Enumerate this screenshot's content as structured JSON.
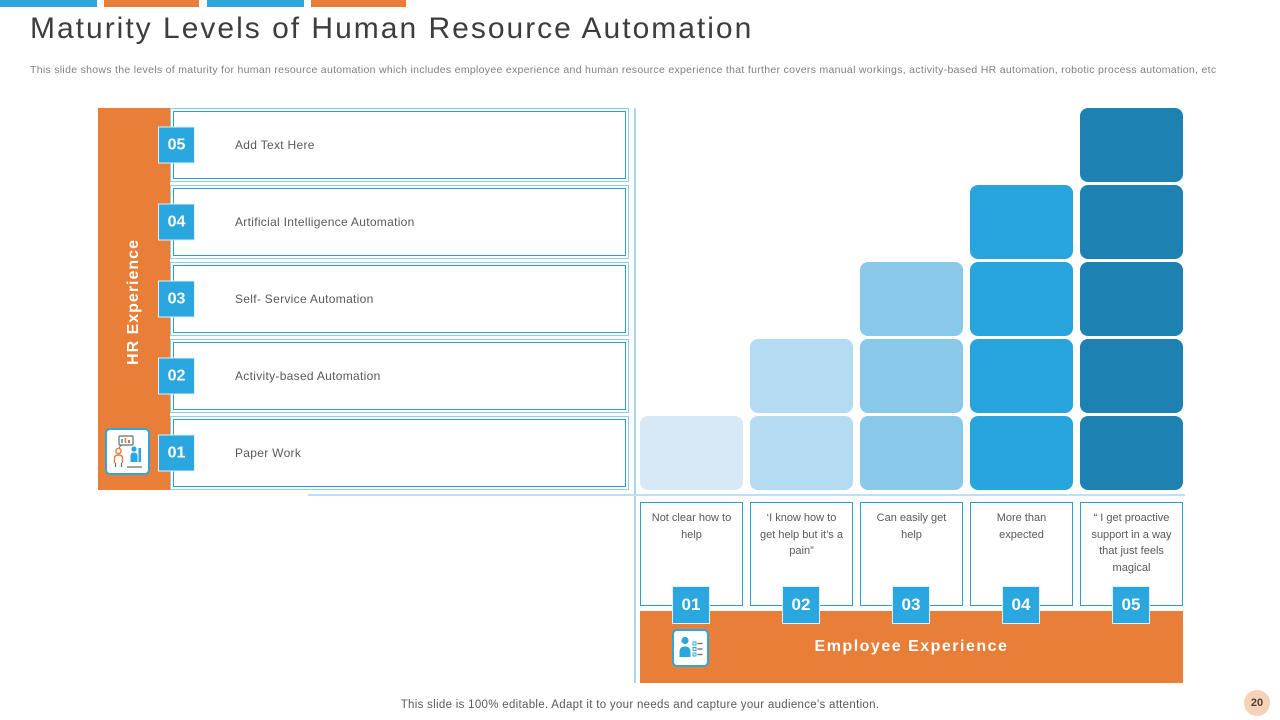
{
  "slide": {
    "title": "Maturity Levels of Human Resource Automation",
    "subtitle": "This slide shows the levels of maturity for human resource automation which includes employee experience and human resource experience that further covers manual workings, activity-based HR automation, robotic process automation, etc",
    "footer": "This slide is 100% editable. Adapt it to your needs and capture your audience's attention.",
    "page_number": "20"
  },
  "colors": {
    "orange": "#E87E38",
    "badge_blue": "#29A7DE",
    "border_teal": "#2E9EC6",
    "border_teal_light": "#8FCFE3",
    "line_blue": "#A9D6EA",
    "title_gray": "#3D3D3D",
    "text_gray": "#595959",
    "subtitle_gray": "#7F7F7F",
    "page_badge_bg": "#F6D2B6"
  },
  "top_bars": [
    {
      "color": "#2FA5DA"
    },
    {
      "color": "#E87E38"
    },
    {
      "color": "#2FA5DA"
    },
    {
      "color": "#E87E38"
    }
  ],
  "hr_axis": {
    "label": "HR Experience",
    "icon": "people-presentation-icon",
    "levels": [
      {
        "num": "05",
        "label": "Add Text Here"
      },
      {
        "num": "04",
        "label": "Artificial Intelligence Automation"
      },
      {
        "num": "03",
        "label": "Self- Service Automation"
      },
      {
        "num": "02",
        "label": "Activity-based Automation"
      },
      {
        "num": "01",
        "label": "Paper Work"
      }
    ]
  },
  "employee_axis": {
    "label": "Employee Experience",
    "icon": "person-checklist-icon",
    "stages": [
      {
        "num": "01",
        "label": "Not clear how to help",
        "blocks": 1,
        "color": "#D7E9F7"
      },
      {
        "num": "02",
        "label": "‘I know how to get help but it’s a pain”",
        "blocks": 2,
        "color": "#B5DBF2"
      },
      {
        "num": "03",
        "label": "Can easily get help",
        "blocks": 3,
        "color": "#8AC8EA"
      },
      {
        "num": "04",
        "label": "More than expected",
        "blocks": 4,
        "color": "#29A5DD"
      },
      {
        "num": "05",
        "label": "“ I get proactive support in a way that just feels magical",
        "blocks": 5,
        "color": "#1D82B2"
      }
    ]
  },
  "chart_data": {
    "type": "bar",
    "title": "HR automation maturity staircase",
    "categories": [
      "01 Not clear how to help",
      "02 ‘I know how to get help but it’s a pain”",
      "03 Can easily get help",
      "04 More than expected",
      "05 “I get proactive support in a way that just feels magical"
    ],
    "values": [
      1,
      2,
      3,
      4,
      5
    ],
    "xlabel": "Employee Experience",
    "ylabel": "HR Experience",
    "ylim": [
      0,
      5
    ],
    "legend": "none",
    "grid": false
  }
}
